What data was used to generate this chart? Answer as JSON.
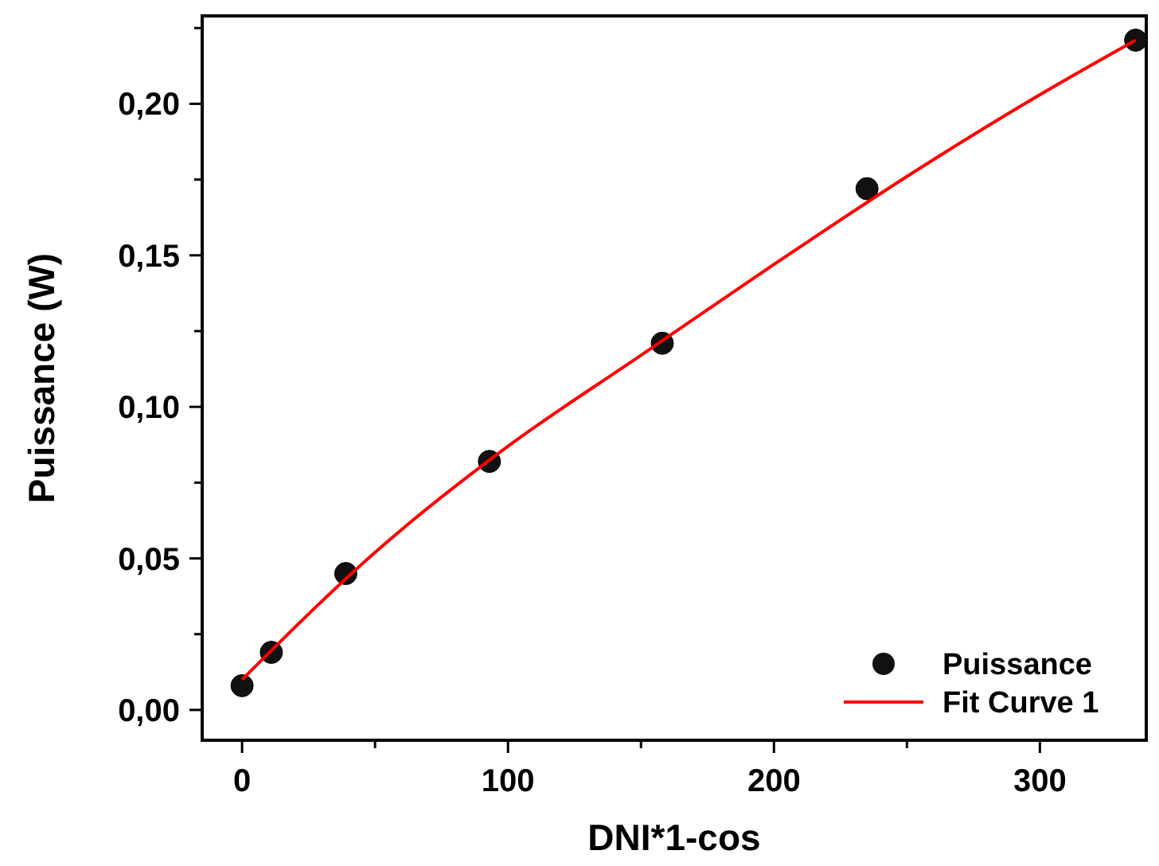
{
  "chart_data": {
    "type": "scatter",
    "xlabel": "DNI*1-cos",
    "ylabel": "Puissance (W)",
    "xlim": [
      -15,
      340
    ],
    "ylim": [
      -0.01,
      0.229
    ],
    "xticks": [
      0,
      {
        "value": 50,
        "label": null
      },
      100,
      {
        "value": 150,
        "label": null
      },
      200,
      {
        "value": 250,
        "label": null
      },
      300
    ],
    "yticks": [
      {
        "value": 0,
        "label": "0,00"
      },
      {
        "value": 0.025,
        "label": null
      },
      {
        "value": 0.05,
        "label": "0,05"
      },
      {
        "value": 0.075,
        "label": null
      },
      {
        "value": 0.1,
        "label": "0,10"
      },
      {
        "value": 0.125,
        "label": null
      },
      {
        "value": 0.15,
        "label": "0,15"
      },
      {
        "value": 0.175,
        "label": null
      },
      {
        "value": 0.2,
        "label": "0,20"
      },
      {
        "value": 0.225,
        "label": null
      }
    ],
    "legend": "bottom right",
    "grid": false,
    "series": [
      {
        "name": "Puissance",
        "color": "#111111",
        "marker": "circle",
        "x": [
          0,
          11,
          39,
          93,
          158,
          235,
          336
        ],
        "values": [
          0.008,
          0.019,
          0.045,
          0.082,
          0.121,
          0.172,
          0.221
        ]
      },
      {
        "name": "Fit Curve 1",
        "type": "line",
        "color": "#ff0000",
        "marker": "none",
        "line_style": "solid",
        "x": [
          0,
          50,
          100,
          150,
          200,
          250,
          300,
          336
        ],
        "values": [
          0.01,
          0.052,
          0.087,
          0.117,
          0.147,
          0.176,
          0.203,
          0.221
        ]
      }
    ]
  }
}
